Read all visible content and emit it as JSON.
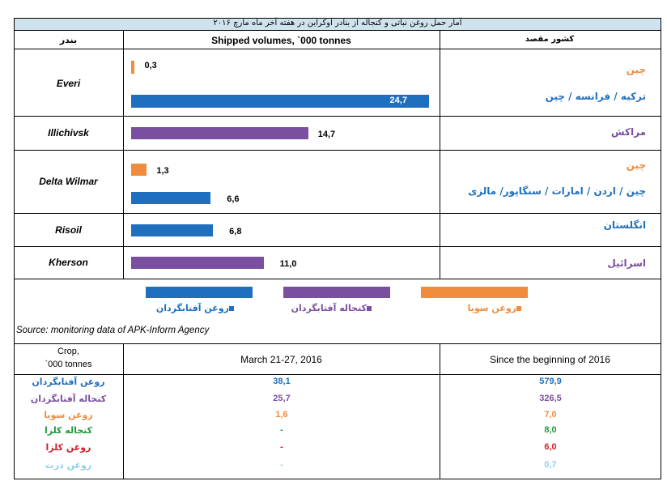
{
  "title": "آمار حمل روغن نباتی و کنجاله از بنادر اوکراین در هفته آخر ماه مارچ ۲۰۱۶",
  "headers": {
    "port": "بندر",
    "volumes": "Shipped volumes, `000 tonnes",
    "destination": "کشور مقصد"
  },
  "colors": {
    "sunflower_oil": "#1f6fbf",
    "sunflower_meal": "#7b4fa0",
    "soybean_oil": "#f08c3c",
    "rapeseed_meal": "#1e9a3c",
    "rapeseed_oil": "#d0202a",
    "corn_oil": "#8fd0e6",
    "title_bg": "#cfe3ee"
  },
  "chart_data": {
    "type": "bar",
    "orientation": "horizontal",
    "xlim": [
      0,
      25
    ],
    "bars": [
      {
        "port": "Everi",
        "value": 0.3,
        "label": "0,3",
        "series": "soybean_oil",
        "destination": "چین",
        "dest_color": "#f08c3c"
      },
      {
        "port": "Everi",
        "value": 24.7,
        "label": "24,7",
        "series": "sunflower_oil",
        "destination": "ترکیه / فرانسه / چین",
        "dest_color": "#1f6fbf"
      },
      {
        "port": "Illichivsk",
        "value": 14.7,
        "label": "14,7",
        "series": "sunflower_meal",
        "destination": "مراکش",
        "dest_color": "#7b4fa0"
      },
      {
        "port": "Delta Wilmar",
        "value": 1.3,
        "label": "1,3",
        "series": "soybean_oil",
        "destination": "چین",
        "dest_color": "#f08c3c"
      },
      {
        "port": "Delta Wilmar",
        "value": 6.6,
        "label": "6,6",
        "series": "sunflower_oil",
        "destination": "چین / اردن / امارات / سنگاپور/ مالزی",
        "dest_color": "#1f6fbf"
      },
      {
        "port": "Risoil",
        "value": 6.8,
        "label": "6,8",
        "series": "sunflower_oil",
        "destination": "انگلستان",
        "dest_color": "#1f6fbf"
      },
      {
        "port": "Kherson",
        "value": 11.0,
        "label": "11,0",
        "series": "sunflower_meal",
        "destination": "اسرائیل",
        "dest_color": "#7b4fa0"
      }
    ],
    "ports": [
      "Everi",
      "Illichivsk",
      "Delta Wilmar",
      "Risoil",
      "Kherson"
    ],
    "legend": [
      {
        "key": "sunflower_oil",
        "label": "روغن آفتابگردان"
      },
      {
        "key": "sunflower_meal",
        "label": "کنجاله آفتابگردان"
      },
      {
        "key": "soybean_oil",
        "label": "روغن سویا"
      }
    ]
  },
  "source": "Source: monitoring data of APK-Inform Agency",
  "table": {
    "header_crop_line1": "Crop,",
    "header_crop_line2": "`000 tonnes",
    "header_week": "March 21-27, 2016",
    "header_since": "Since the beginning of 2016",
    "rows": [
      {
        "label": "روغن آفتابگردان",
        "week": "38,1",
        "since": "579,9",
        "color": "#1f6fbf"
      },
      {
        "label": "کنجاله آفتابگردان",
        "week": "25,7",
        "since": "326,5",
        "color": "#7b4fa0"
      },
      {
        "label": "روغن سویا",
        "week": "1,6",
        "since": "7,0",
        "color": "#f08c3c"
      },
      {
        "label": "کنجاله کلزا",
        "week": "-",
        "since": "8,0",
        "color": "#1e9a3c"
      },
      {
        "label": "روغن کلزا",
        "week": "-",
        "since": "6,0",
        "color": "#d0202a"
      },
      {
        "label": "روغن ذرت",
        "week": "-",
        "since": "0,7",
        "color": "#8fd0e6"
      }
    ]
  }
}
